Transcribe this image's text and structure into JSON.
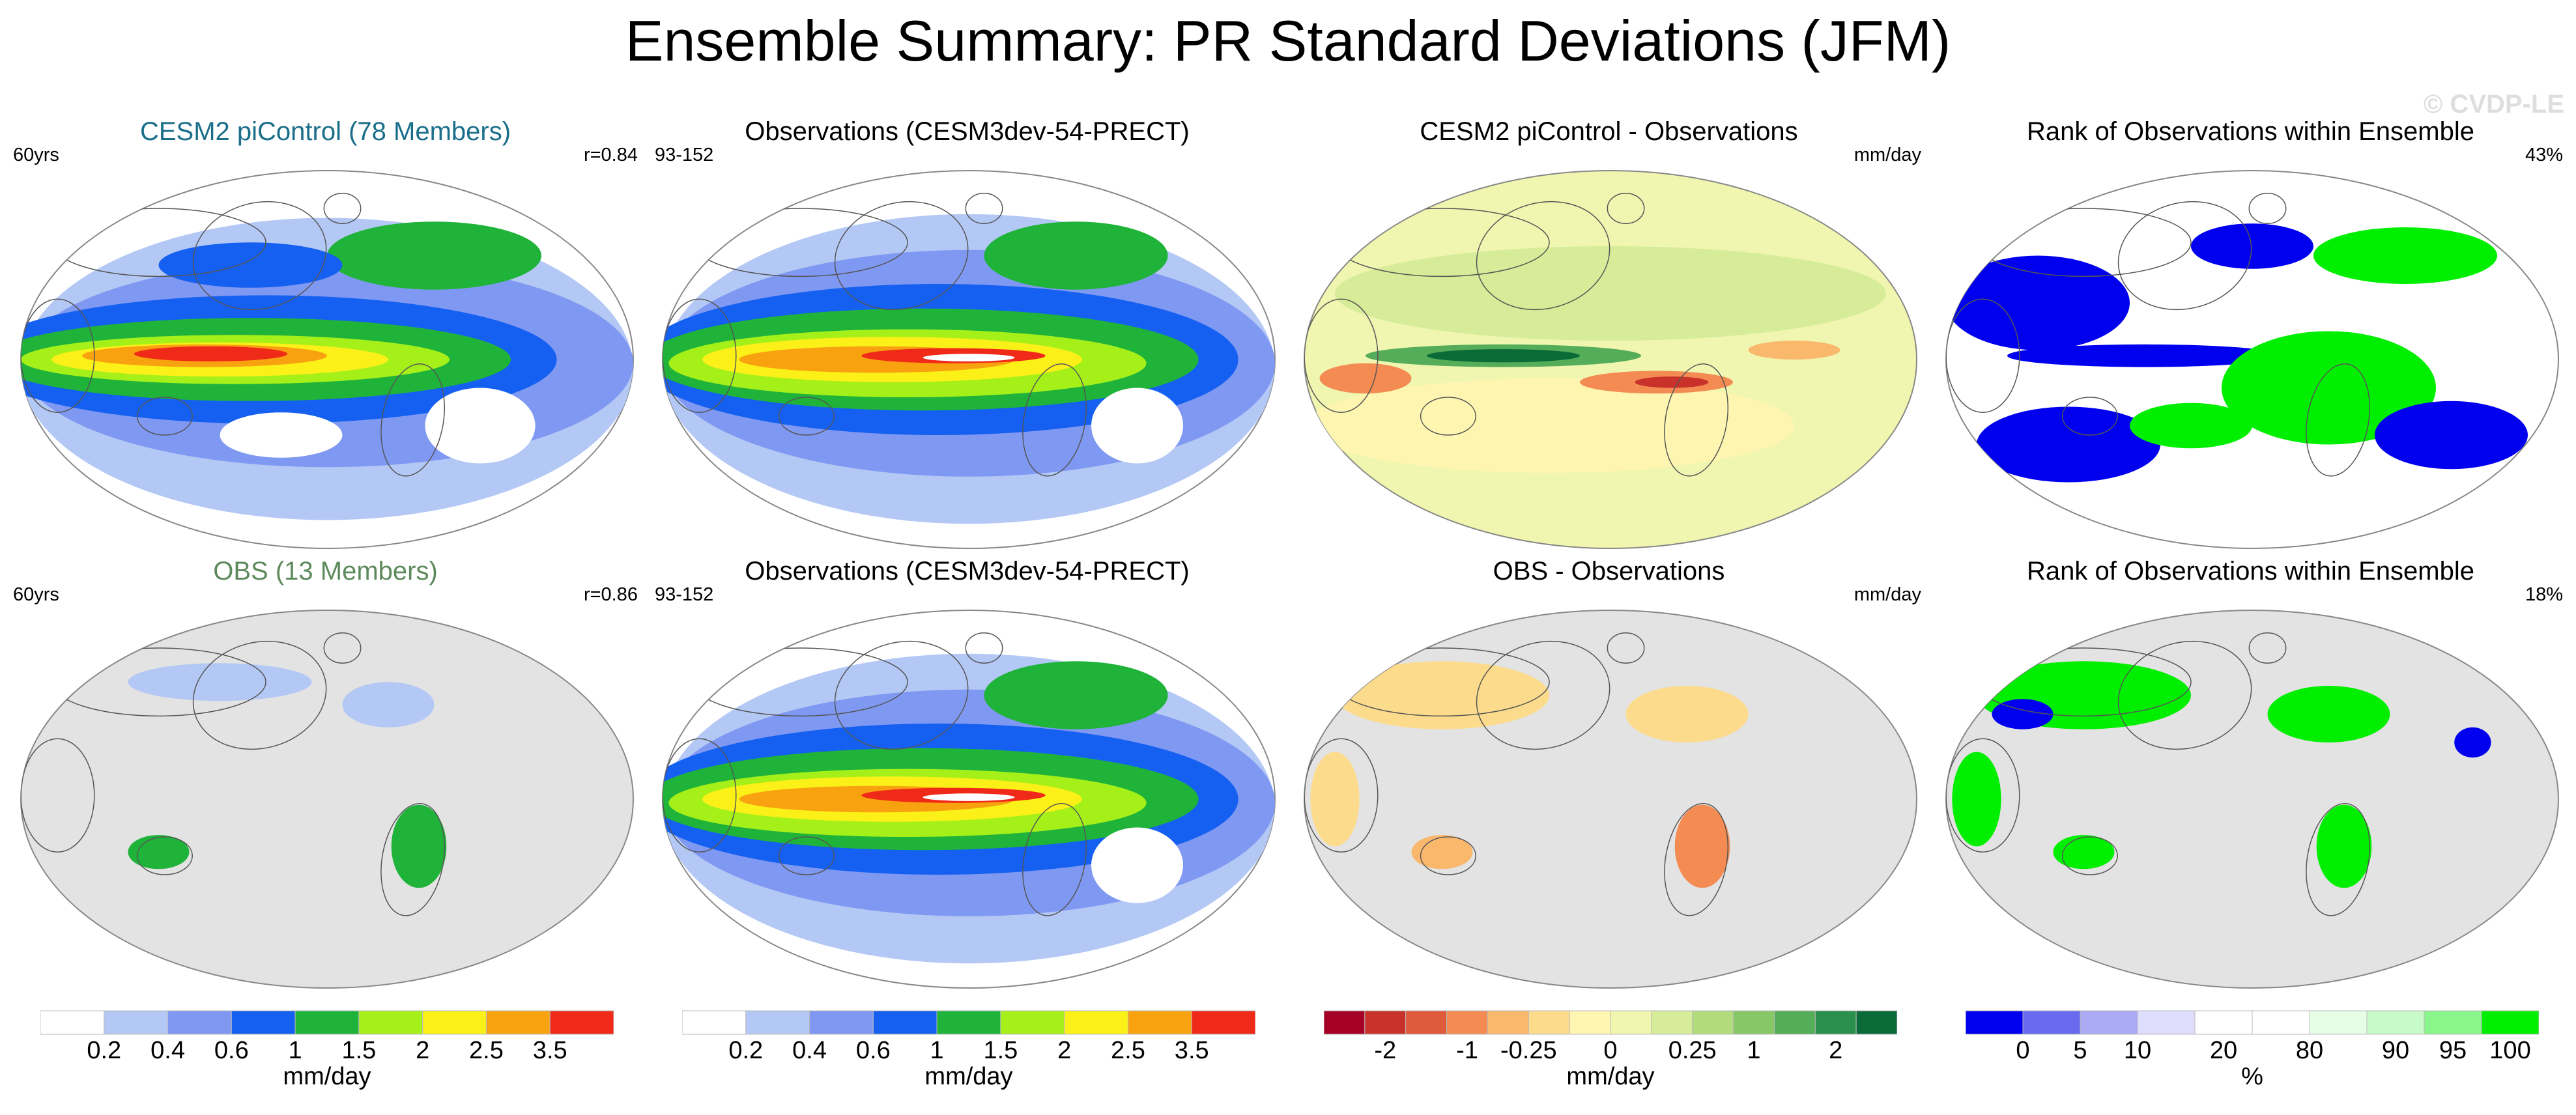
{
  "main_title": "Ensemble Summary: PR Standard Deviations (JFM)",
  "watermark": "© CVDP-LE",
  "panels": [
    {
      "title": "CESM2 piControl (78 Members)",
      "title_color": "#1a6e8a",
      "left_note": "60yrs",
      "right_note": "r=0.84",
      "map_type": "model",
      "land_masked": false
    },
    {
      "title": "Observations (CESM3dev-54-PRECT)",
      "title_color": "#000000",
      "left_note": "93-152",
      "right_note": "",
      "map_type": "obs",
      "land_masked": false
    },
    {
      "title": "CESM2 piControl - Observations",
      "title_color": "#000000",
      "left_note": "",
      "right_note": "mm/day",
      "map_type": "diff",
      "land_masked": false
    },
    {
      "title": "Rank of Observations within Ensemble",
      "title_color": "#000000",
      "left_note": "",
      "right_note": "43%",
      "map_type": "rank",
      "land_masked": false
    },
    {
      "title": "OBS (13 Members)",
      "title_color": "#5d8a5d",
      "left_note": "60yrs",
      "right_note": "r=0.86",
      "map_type": "model",
      "land_masked": true
    },
    {
      "title": "Observations (CESM3dev-54-PRECT)",
      "title_color": "#000000",
      "left_note": "93-152",
      "right_note": "",
      "map_type": "obs",
      "land_masked": false
    },
    {
      "title": "OBS - Observations",
      "title_color": "#000000",
      "left_note": "",
      "right_note": "mm/day",
      "map_type": "diff",
      "land_masked": true
    },
    {
      "title": "Rank of Observations within Ensemble",
      "title_color": "#000000",
      "left_note": "",
      "right_note": "18%",
      "map_type": "rank",
      "land_masked": true
    }
  ],
  "colorbars": [
    {
      "unit": "mm/day",
      "colors": [
        "#ffffff",
        "#b4c8f5",
        "#7f98f2",
        "#1560f0",
        "#1fb33a",
        "#a6f01a",
        "#fbf018",
        "#f8a210",
        "#f02a18"
      ],
      "labels": [
        "0.2",
        "0.4",
        "0.6",
        "1",
        "1.5",
        "2",
        "2.5",
        "3.5"
      ]
    },
    {
      "unit": "mm/day",
      "colors": [
        "#ffffff",
        "#b4c8f5",
        "#7f98f2",
        "#1560f0",
        "#1fb33a",
        "#a6f01a",
        "#fbf018",
        "#f8a210",
        "#f02a18"
      ],
      "labels": [
        "0.2",
        "0.4",
        "0.6",
        "1",
        "1.5",
        "2",
        "2.5",
        "3.5"
      ]
    },
    {
      "unit": "mm/day",
      "colors": [
        "#a50026",
        "#c8322a",
        "#e05a3c",
        "#f38b52",
        "#f9b86c",
        "#fcdc8c",
        "#fef6b0",
        "#f0f6b0",
        "#d6ec98",
        "#b2dc7c",
        "#86c766",
        "#55ad5a",
        "#2a8f4a",
        "#0a6a38"
      ],
      "labels": [
        "-2",
        "-1",
        "-0.25",
        "0",
        "0.25",
        "1",
        "2"
      ],
      "label_slots": [
        1.5,
        3.5,
        5,
        7,
        9,
        10.5,
        12.5
      ]
    },
    {
      "unit": "%",
      "colors": [
        "#0000ee",
        "#6a6af0",
        "#aaaaf5",
        "#dedefc",
        "#ffffff",
        "#ffffff",
        "#e6fde6",
        "#c8fac8",
        "#8af58a",
        "#00ee00"
      ],
      "labels": [
        "0",
        "5",
        "10",
        "20",
        "80",
        "90",
        "95",
        "100"
      ],
      "label_slots": [
        1,
        2,
        3,
        4.5,
        6,
        7.5,
        8.5,
        9.5
      ]
    }
  ]
}
